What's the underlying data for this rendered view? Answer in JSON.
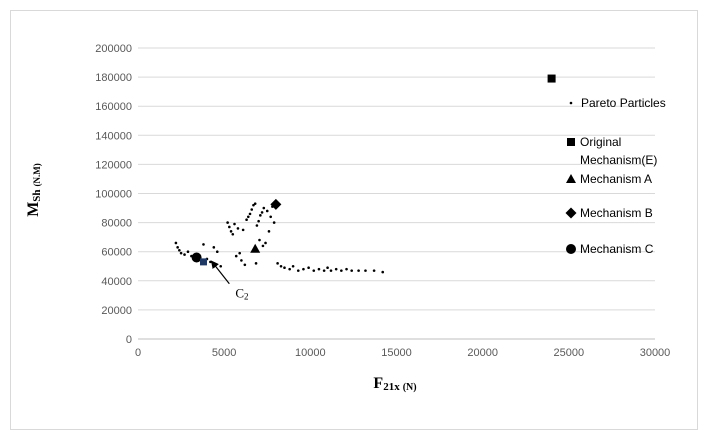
{
  "chart_data": {
    "type": "scatter",
    "xlim": [
      0,
      30000
    ],
    "ylim": [
      0,
      200000
    ],
    "x_ticks": [
      "0",
      "5000",
      "10000",
      "15000",
      "20000",
      "25000",
      "30000"
    ],
    "y_ticks": [
      "0",
      "20000",
      "40000",
      "60000",
      "80000",
      "100000",
      "120000",
      "140000",
      "160000",
      "180000",
      "200000"
    ],
    "xlabel_main": "F",
    "xlabel_sub": "21x",
    "xlabel_unit": "(N)",
    "ylabel_main": "M",
    "ylabel_sub": "Sh",
    "ylabel_unit": "(N.M)",
    "grid": "horizontal",
    "legend_position": "right",
    "series": [
      {
        "name": "Pareto Particles",
        "marker": "small-dot",
        "color": "#000000",
        "points": [
          [
            2200,
            66000
          ],
          [
            2300,
            63000
          ],
          [
            2400,
            61000
          ],
          [
            2500,
            59000
          ],
          [
            2700,
            58000
          ],
          [
            2900,
            60000
          ],
          [
            3100,
            57000
          ],
          [
            3300,
            56000
          ],
          [
            3500,
            54000
          ],
          [
            3700,
            53000
          ],
          [
            3800,
            65000
          ],
          [
            4000,
            55000
          ],
          [
            4200,
            53000
          ],
          [
            4400,
            63000
          ],
          [
            4600,
            60000
          ],
          [
            4800,
            50000
          ],
          [
            5200,
            80000
          ],
          [
            5300,
            77000
          ],
          [
            5400,
            74000
          ],
          [
            5500,
            72000
          ],
          [
            5600,
            79000
          ],
          [
            5700,
            57000
          ],
          [
            5800,
            76000
          ],
          [
            5900,
            59000
          ],
          [
            6000,
            54000
          ],
          [
            6100,
            75000
          ],
          [
            6200,
            51000
          ],
          [
            6300,
            82000
          ],
          [
            6400,
            84000
          ],
          [
            6500,
            86000
          ],
          [
            6600,
            89000
          ],
          [
            6700,
            92000
          ],
          [
            6800,
            93000
          ],
          [
            6850,
            52000
          ],
          [
            6900,
            78000
          ],
          [
            7000,
            81000
          ],
          [
            7050,
            68000
          ],
          [
            7100,
            85000
          ],
          [
            7200,
            87000
          ],
          [
            7250,
            64000
          ],
          [
            7300,
            90000
          ],
          [
            7400,
            66000
          ],
          [
            7500,
            88000
          ],
          [
            7600,
            74000
          ],
          [
            7700,
            84000
          ],
          [
            7800,
            91000
          ],
          [
            7900,
            80000
          ],
          [
            8000,
            93000
          ],
          [
            8100,
            52000
          ],
          [
            8300,
            50000
          ],
          [
            8500,
            49000
          ],
          [
            8800,
            48000
          ],
          [
            9000,
            50000
          ],
          [
            9300,
            47000
          ],
          [
            9600,
            48000
          ],
          [
            9900,
            49000
          ],
          [
            10200,
            47000
          ],
          [
            10500,
            48000
          ],
          [
            10800,
            47000
          ],
          [
            11000,
            49000
          ],
          [
            11200,
            47000
          ],
          [
            11500,
            48000
          ],
          [
            11800,
            47000
          ],
          [
            12100,
            48000
          ],
          [
            12400,
            47000
          ],
          [
            12800,
            47000
          ],
          [
            13200,
            47000
          ],
          [
            13700,
            47000
          ],
          [
            14200,
            46000
          ]
        ]
      },
      {
        "name": "Original Mechanism(E)",
        "marker": "square",
        "color": "#000000",
        "points": [
          [
            24000,
            179000
          ]
        ]
      },
      {
        "name": "Mechanism A",
        "marker": "triangle",
        "color": "#000000",
        "points": [
          [
            6800,
            62000
          ]
        ]
      },
      {
        "name": "Mechanism B",
        "marker": "diamond",
        "color": "#000000",
        "points": [
          [
            8000,
            92500
          ]
        ]
      },
      {
        "name": "Mechanism C",
        "marker": "circle",
        "color": "#000000",
        "points": [
          [
            3400,
            56000
          ]
        ]
      }
    ],
    "extra_marker": {
      "marker": "small-square",
      "color": "#1f3864",
      "points": [
        [
          3800,
          53000
        ]
      ]
    },
    "legend_entries": [
      {
        "label": "Pareto Particles",
        "marker": "small-dot"
      },
      {
        "label": "Original",
        "marker": "square"
      },
      {
        "label": "Mechanism(E)",
        "marker": "none"
      },
      {
        "label": "Mechanism A",
        "marker": "triangle"
      },
      {
        "label": "Mechanism B",
        "marker": "diamond"
      },
      {
        "label": "Mechanism C",
        "marker": "circle"
      }
    ],
    "annotations": [
      {
        "text": "C",
        "sub": "2",
        "arrow_from": [
          5300,
          38000
        ],
        "arrow_to": [
          4300,
          53000
        ]
      }
    ]
  }
}
